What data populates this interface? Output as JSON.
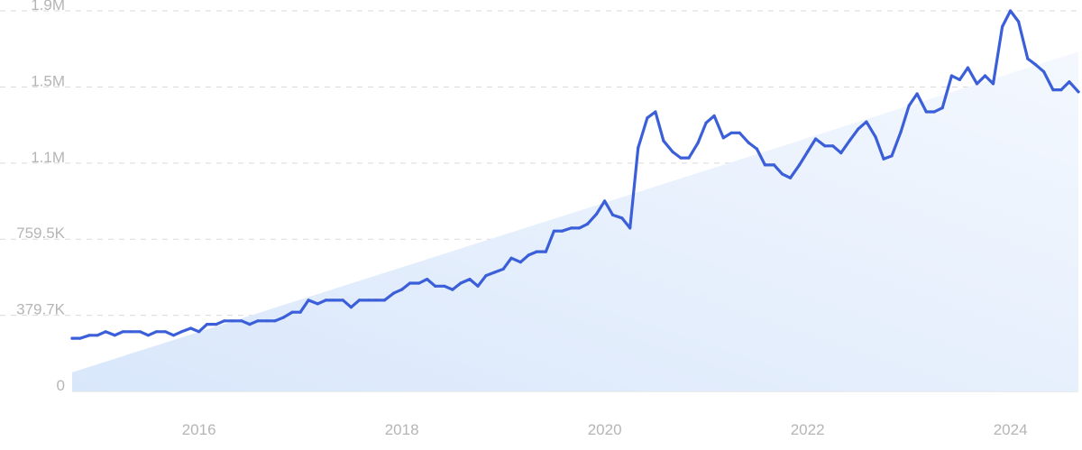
{
  "chart_data": {
    "type": "line",
    "title": "",
    "xlabel": "",
    "ylabel": "",
    "x_ticks": [
      "2016",
      "2018",
      "2020",
      "2022",
      "2024"
    ],
    "y_ticks": [
      "0",
      "379.7K",
      "759.5K",
      "1.1M",
      "1.5M",
      "1.9M"
    ],
    "y_tick_values": [
      0,
      379700,
      759500,
      1139000,
      1519000,
      1899000
    ],
    "xlim": [
      2014.75,
      2024.67
    ],
    "ylim": [
      0,
      1899000
    ],
    "grid": true,
    "legend": "none",
    "colors": {
      "line": "#3b5fd9",
      "trend_fill": "#d6e6fb",
      "grid": "#d9d9d9",
      "tick_text": "#b5b5b5"
    },
    "trend": {
      "x": [
        2014.75,
        2024.67
      ],
      "y": [
        95000,
        1695000
      ]
    },
    "series": [
      {
        "x": [
          2014.75,
          2014.83,
          2014.92,
          2015.0,
          2015.08,
          2015.17,
          2015.25,
          2015.33,
          2015.42,
          2015.5,
          2015.58,
          2015.67,
          2015.75,
          2015.83,
          2015.92,
          2016.0,
          2016.08,
          2016.17,
          2016.25,
          2016.33,
          2016.42,
          2016.5,
          2016.58,
          2016.67,
          2016.75,
          2016.83,
          2016.92,
          2017.0,
          2017.08,
          2017.17,
          2017.25,
          2017.33,
          2017.42,
          2017.5,
          2017.58,
          2017.67,
          2017.75,
          2017.83,
          2017.92,
          2018.0,
          2018.08,
          2018.17,
          2018.25,
          2018.33,
          2018.42,
          2018.5,
          2018.58,
          2018.67,
          2018.75,
          2018.83,
          2018.92,
          2019.0,
          2019.08,
          2019.17,
          2019.25,
          2019.33,
          2019.42,
          2019.5,
          2019.58,
          2019.67,
          2019.75,
          2019.83,
          2019.92,
          2020.0,
          2020.08,
          2020.17,
          2020.25,
          2020.33,
          2020.42,
          2020.5,
          2020.58,
          2020.67,
          2020.75,
          2020.83,
          2020.92,
          2021.0,
          2021.08,
          2021.17,
          2021.25,
          2021.33,
          2021.42,
          2021.5,
          2021.58,
          2021.67,
          2021.75,
          2021.83,
          2021.92,
          2022.0,
          2022.08,
          2022.17,
          2022.25,
          2022.33,
          2022.42,
          2022.5,
          2022.58,
          2022.67,
          2022.75,
          2022.83,
          2022.92,
          2023.0,
          2023.08,
          2023.17,
          2023.25,
          2023.33,
          2023.42,
          2023.5,
          2023.58,
          2023.67,
          2023.75,
          2023.83,
          2023.92,
          2024.0,
          2024.08,
          2024.17,
          2024.25,
          2024.33,
          2024.42,
          2024.5,
          2024.58,
          2024.67
        ],
        "y": [
          265000,
          265000,
          280000,
          280000,
          298000,
          280000,
          298000,
          298000,
          298000,
          280000,
          298000,
          298000,
          280000,
          298000,
          315000,
          298000,
          335000,
          335000,
          352000,
          352000,
          352000,
          335000,
          352000,
          352000,
          352000,
          368000,
          395000,
          395000,
          455000,
          437000,
          455000,
          455000,
          455000,
          420000,
          455000,
          455000,
          455000,
          455000,
          490000,
          508000,
          540000,
          540000,
          560000,
          525000,
          525000,
          508000,
          540000,
          560000,
          525000,
          578000,
          595000,
          610000,
          665000,
          645000,
          680000,
          697000,
          697000,
          800000,
          800000,
          815000,
          815000,
          835000,
          885000,
          950000,
          880000,
          865000,
          815000,
          1215000,
          1365000,
          1395000,
          1250000,
          1195000,
          1165000,
          1165000,
          1240000,
          1340000,
          1375000,
          1265000,
          1290000,
          1290000,
          1240000,
          1210000,
          1130000,
          1130000,
          1085000,
          1065000,
          1130000,
          1195000,
          1260000,
          1225000,
          1225000,
          1190000,
          1255000,
          1310000,
          1345000,
          1270000,
          1160000,
          1175000,
          1295000,
          1425000,
          1485000,
          1395000,
          1395000,
          1415000,
          1575000,
          1555000,
          1615000,
          1535000,
          1575000,
          1535000,
          1820000,
          1899000,
          1845000,
          1660000,
          1630000,
          1595000,
          1505000,
          1505000,
          1545000,
          1495000
        ]
      }
    ]
  }
}
